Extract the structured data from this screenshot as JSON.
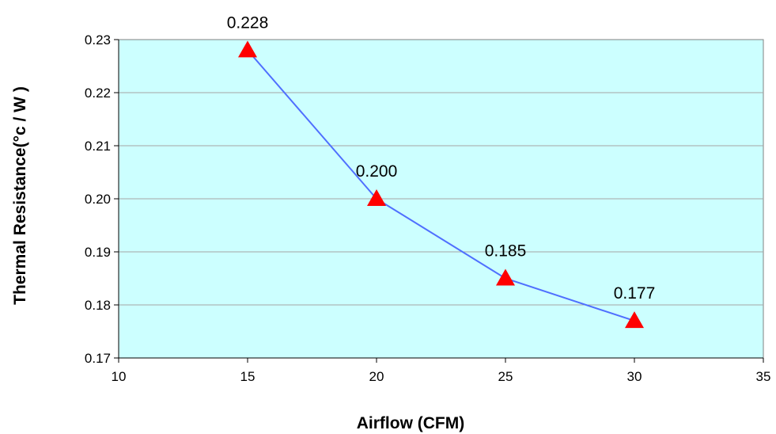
{
  "chart_data": {
    "type": "line",
    "title": "",
    "xlabel": "Airflow (CFM)",
    "ylabel": "Thermal Resistance(°c / W )",
    "xlim": [
      10,
      35
    ],
    "ylim": [
      0.17,
      0.23
    ],
    "x_ticks": [
      "10",
      "15",
      "20",
      "25",
      "30",
      "35"
    ],
    "y_ticks": [
      "0.17",
      "0.18",
      "0.19",
      "0.20",
      "0.21",
      "0.22",
      "0.23"
    ],
    "grid": "horizontal",
    "legend": "none",
    "series": [
      {
        "x": [
          15,
          20,
          25,
          30
        ],
        "y": [
          0.228,
          0.2,
          0.185,
          0.177
        ],
        "data_labels": [
          "0.228",
          "0.200",
          "0.185",
          "0.177"
        ],
        "marker": "triangle",
        "line_color": "#4F6FFF",
        "marker_color": "#FF0000"
      }
    ],
    "plot_background": "#CCFFFF",
    "gridline_color": "#A6A6A6"
  }
}
